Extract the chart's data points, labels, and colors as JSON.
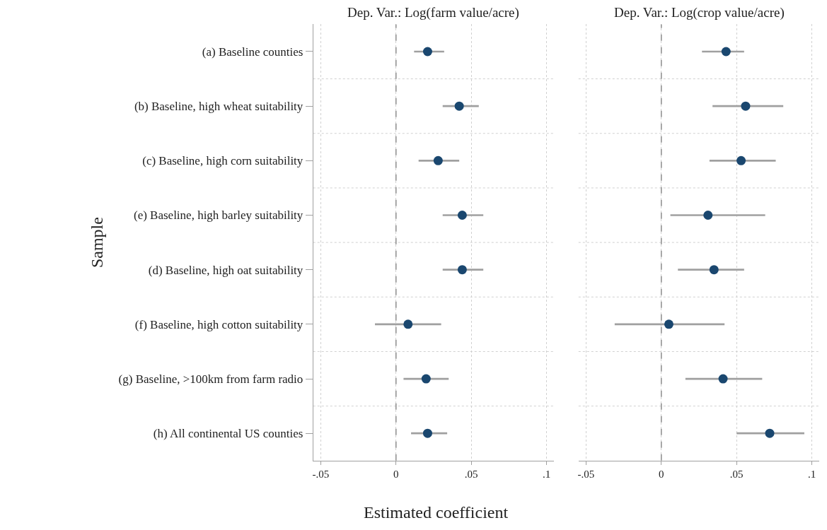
{
  "chart_data": [
    {
      "type": "bar",
      "orientation": "horizontal",
      "title": "Dep. Var.: Log(farm value/acre)",
      "ylabel": "Sample",
      "xlabel": "Estimated coefficient",
      "categories": [
        "(a) Baseline counties",
        "(b) Baseline, high wheat suitability",
        "(c) Baseline, high corn suitability",
        "(e) Baseline, high barley suitability",
        "(d) Baseline, high oat suitability",
        "(f) Baseline, high cotton suitability",
        "(g) Baseline, >100km from farm radio",
        "(h) All continental US counties"
      ],
      "series": [
        {
          "color": "#a0a0a0",
          "base": [
            0.012,
            0.031,
            0.015,
            0.031,
            0.031,
            -0.014,
            0.005,
            0.01
          ],
          "values": [
            0.02,
            0.024,
            0.027,
            0.027,
            0.027,
            0.044,
            0.03,
            0.024
          ]
        },
        {
          "type": "scatter",
          "color": "#1a476f",
          "values": [
            0.021,
            0.042,
            0.028,
            0.044,
            0.044,
            0.008,
            0.02,
            0.021
          ]
        }
      ],
      "xlim": [
        -0.055,
        0.105
      ],
      "xticks": [
        {
          "value": -0.05,
          "label": "-.05"
        },
        0,
        {
          "value": 0.05,
          "label": ".05"
        },
        {
          "value": 0.1,
          "label": ".1"
        }
      ],
      "ref_lines": [
        {
          "axis": "x",
          "value": 0,
          "color": "#8c8c8c",
          "line_style": "dashed"
        }
      ],
      "grid": true,
      "marker": "circle"
    },
    {
      "type": "bar",
      "orientation": "horizontal",
      "title": "Dep. Var.: Log(crop value/acre)",
      "categories": [
        null,
        null,
        null,
        null,
        null,
        null,
        null,
        null
      ],
      "series": [
        {
          "color": "#a0a0a0",
          "base": [
            0.027,
            0.034,
            0.032,
            0.006,
            0.011,
            -0.031,
            0.016,
            0.05
          ],
          "values": [
            0.028,
            0.047,
            0.044,
            0.063,
            0.044,
            0.073,
            0.051,
            0.045
          ]
        },
        {
          "type": "scatter",
          "color": "#1a476f",
          "values": [
            0.043,
            0.056,
            0.053,
            0.031,
            0.035,
            0.005,
            0.041,
            0.072
          ]
        }
      ],
      "xlim": [
        -0.055,
        0.105
      ],
      "xticks": [
        {
          "value": -0.05,
          "label": "-.05"
        },
        0,
        {
          "value": 0.05,
          "label": ".05"
        },
        {
          "value": 0.1,
          "label": ".1"
        }
      ],
      "ref_lines": [
        {
          "axis": "x",
          "value": 0,
          "color": "#8c8c8c",
          "line_style": "dashed"
        }
      ],
      "grid": true,
      "marker": "circle",
      "tick_labels": "x"
    }
  ]
}
